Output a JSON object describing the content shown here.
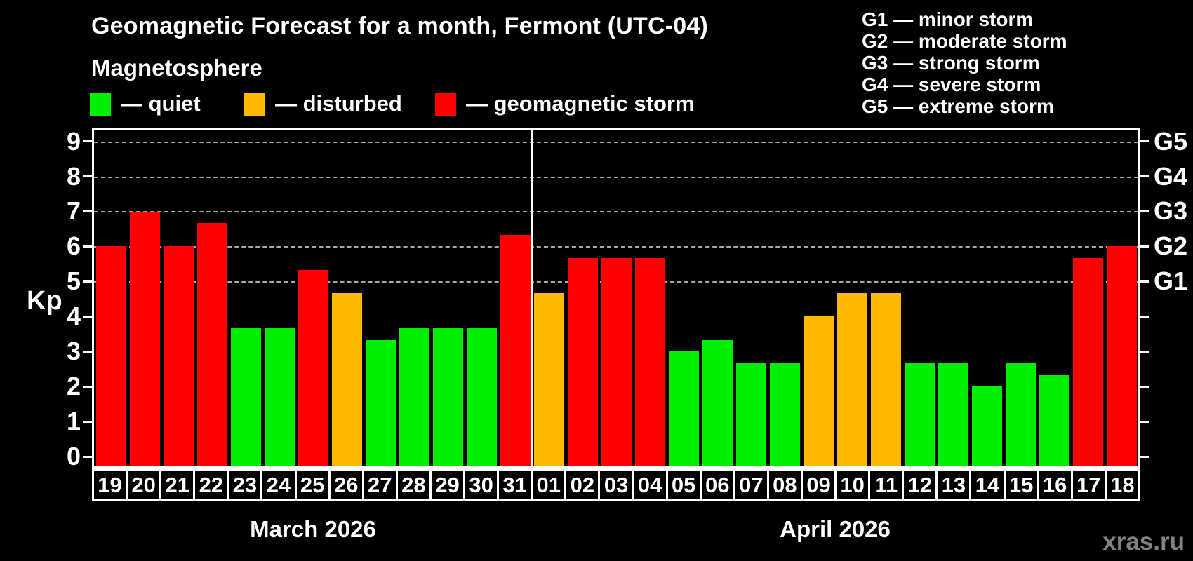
{
  "header": {
    "title": "Geomagnetic Forecast for a month, Fermont (UTC-04)",
    "subtitle": "Magnetosphere",
    "legend": [
      {
        "key": "quiet",
        "label": "— quiet",
        "color": "#00ee00"
      },
      {
        "key": "disturbed",
        "label": "— disturbed",
        "color": "#ffb900"
      },
      {
        "key": "storm",
        "label": "— geomagnetic storm",
        "color": "#ff0000"
      }
    ],
    "g_scale_legend": [
      "G1 — minor storm",
      "G2 — moderate storm",
      "G3 — strong storm",
      "G4 — severe storm",
      "G5 — extreme storm"
    ]
  },
  "chart_data": {
    "type": "bar",
    "ylabel": "Kp",
    "ylim": [
      0,
      9
    ],
    "yticks": [
      0,
      1,
      2,
      3,
      4,
      5,
      6,
      7,
      8,
      9
    ],
    "grid_levels": [
      5,
      6,
      7,
      8,
      9
    ],
    "g_levels": [
      {
        "kp": 5,
        "label": "G1"
      },
      {
        "kp": 6,
        "label": "G2"
      },
      {
        "kp": 7,
        "label": "G3"
      },
      {
        "kp": 8,
        "label": "G4"
      },
      {
        "kp": 9,
        "label": "G5"
      }
    ],
    "colors": {
      "quiet": "#00ee00",
      "disturbed": "#ffb900",
      "storm": "#ff0000"
    },
    "groups": [
      {
        "label": "March 2026",
        "days": [
          {
            "day": "19",
            "kp": 6.0,
            "status": "storm"
          },
          {
            "day": "20",
            "kp": 7.0,
            "status": "storm"
          },
          {
            "day": "21",
            "kp": 6.0,
            "status": "storm"
          },
          {
            "day": "22",
            "kp": 6.67,
            "status": "storm"
          },
          {
            "day": "23",
            "kp": 3.67,
            "status": "quiet"
          },
          {
            "day": "24",
            "kp": 3.67,
            "status": "quiet"
          },
          {
            "day": "25",
            "kp": 5.33,
            "status": "storm"
          },
          {
            "day": "26",
            "kp": 4.67,
            "status": "disturbed"
          },
          {
            "day": "27",
            "kp": 3.33,
            "status": "quiet"
          },
          {
            "day": "28",
            "kp": 3.67,
            "status": "quiet"
          },
          {
            "day": "29",
            "kp": 3.67,
            "status": "quiet"
          },
          {
            "day": "30",
            "kp": 3.67,
            "status": "quiet"
          },
          {
            "day": "31",
            "kp": 6.33,
            "status": "storm"
          }
        ]
      },
      {
        "label": "April 2026",
        "days": [
          {
            "day": "01",
            "kp": 4.67,
            "status": "disturbed"
          },
          {
            "day": "02",
            "kp": 5.67,
            "status": "storm"
          },
          {
            "day": "03",
            "kp": 5.67,
            "status": "storm"
          },
          {
            "day": "04",
            "kp": 5.67,
            "status": "storm"
          },
          {
            "day": "05",
            "kp": 3.0,
            "status": "quiet"
          },
          {
            "day": "06",
            "kp": 3.33,
            "status": "quiet"
          },
          {
            "day": "07",
            "kp": 2.67,
            "status": "quiet"
          },
          {
            "day": "08",
            "kp": 2.67,
            "status": "quiet"
          },
          {
            "day": "09",
            "kp": 4.0,
            "status": "disturbed"
          },
          {
            "day": "10",
            "kp": 4.67,
            "status": "disturbed"
          },
          {
            "day": "11",
            "kp": 4.67,
            "status": "disturbed"
          },
          {
            "day": "12",
            "kp": 2.67,
            "status": "quiet"
          },
          {
            "day": "13",
            "kp": 2.67,
            "status": "quiet"
          },
          {
            "day": "14",
            "kp": 2.0,
            "status": "quiet"
          },
          {
            "day": "15",
            "kp": 2.67,
            "status": "quiet"
          },
          {
            "day": "16",
            "kp": 2.33,
            "status": "quiet"
          },
          {
            "day": "17",
            "kp": 5.67,
            "status": "storm"
          },
          {
            "day": "18",
            "kp": 6.0,
            "status": "storm"
          }
        ]
      }
    ]
  },
  "watermark": "xras.ru"
}
